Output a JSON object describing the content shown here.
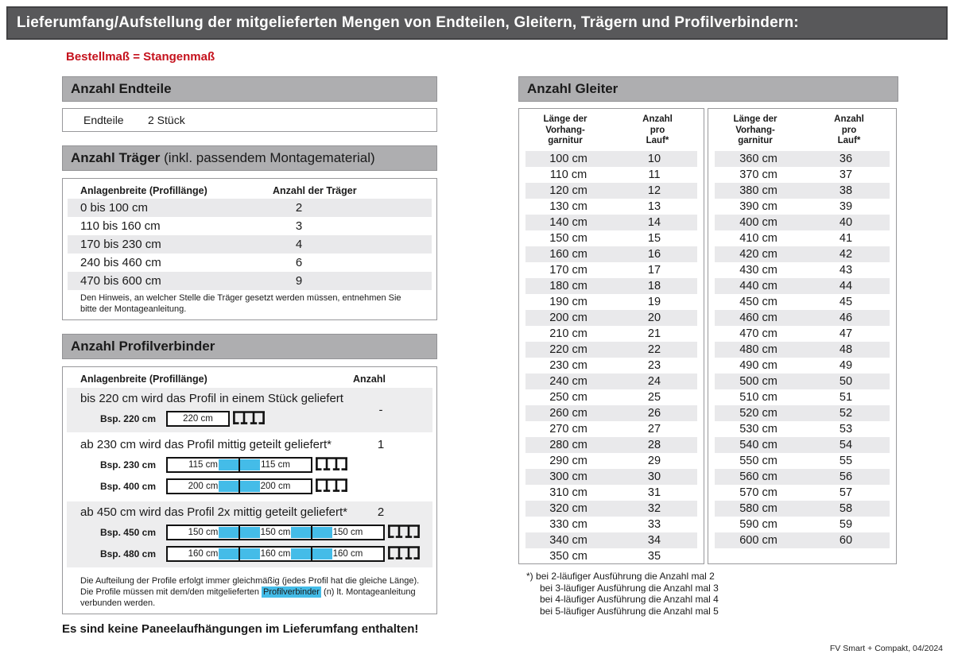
{
  "title": "Lieferumfang/Aufstellung der mitgelieferten Mengen von Endteilen, Gleitern, Trägern und Profilverbindern:",
  "subtitle": "Bestellmaß = Stangenmaß",
  "colors": {
    "titlebar_gray": "#58585a",
    "section_header_gray": "#aeaeb0",
    "row_stripe_gray": "#e9e9eb",
    "accent_red": "#c5121d",
    "connector_blue": "#44bce8"
  },
  "icons": {
    "profile_end": "profile-cross-section-icon"
  },
  "endteile": {
    "header": "Anzahl Endteile",
    "label": "Endteile",
    "value": "2 Stück"
  },
  "traeger": {
    "header_bold": "Anzahl Träger",
    "header_rest": " (inkl. passendem Montagematerial)",
    "col1": "Anlagenbreite (Profillänge)",
    "col2": "Anzahl der Träger",
    "rows": [
      [
        "0 bis 100 cm",
        "2"
      ],
      [
        "110 bis 160 cm",
        "3"
      ],
      [
        "170 bis 230 cm",
        "4"
      ],
      [
        "240 bis 460 cm",
        "6"
      ],
      [
        "470 bis 600 cm",
        "9"
      ]
    ],
    "note": "Den Hinweis, an welcher Stelle die Träger gesetzt werden müssen, entnehmen Sie bitte der Montageanleitung."
  },
  "profilverbinder": {
    "header": "Anzahl Profilverbinder",
    "col1": "Anlagenbreite (Profillänge)",
    "col2": "Anzahl",
    "groups": [
      {
        "text": "bis 220 cm wird das Profil in einem Stück geliefert",
        "anzahl": "-",
        "shaded": true,
        "examples": [
          {
            "label": "Bsp. 220 cm",
            "segments": [
              "220 cm"
            ]
          }
        ]
      },
      {
        "text": "ab 230 cm wird das Profil mittig geteilt geliefert*",
        "anzahl": "1",
        "shaded": false,
        "examples": [
          {
            "label": "Bsp. 230 cm",
            "segments": [
              "115 cm",
              "115 cm"
            ]
          },
          {
            "label": "Bsp. 400 cm",
            "segments": [
              "200 cm",
              "200 cm"
            ]
          }
        ]
      },
      {
        "text": "ab 450 cm wird das Profil 2x mittig geteilt geliefert*",
        "anzahl": "2",
        "shaded": true,
        "examples": [
          {
            "label": "Bsp. 450 cm",
            "segments": [
              "150 cm",
              "150 cm",
              "150 cm"
            ]
          },
          {
            "label": "Bsp. 480 cm",
            "segments": [
              "160 cm",
              "160 cm",
              "160 cm"
            ]
          }
        ]
      }
    ],
    "note_part1": "Die Aufteilung der Profile erfolgt immer gleichmäßig (jedes Profil hat die gleiche Länge). Die Profile müssen mit dem/den mitgelieferten ",
    "note_highlight": "Profilverbinder",
    "note_part2": " (n) lt. Montageanleitung verbunden werden."
  },
  "no_panel_note": "Es sind keine Paneelaufhängungen im Lieferumfang enthalten!",
  "gleiter": {
    "header": "Anzahl Gleiter",
    "col1_lines": [
      "Länge der",
      "Vorhang-",
      "garnitur"
    ],
    "col2_lines": [
      "Anzahl",
      "pro",
      "Lauf*"
    ],
    "table1": {
      "rows": [
        [
          "100 cm",
          "10"
        ],
        [
          "110 cm",
          "11"
        ],
        [
          "120 cm",
          "12"
        ],
        [
          "130 cm",
          "13"
        ],
        [
          "140 cm",
          "14"
        ],
        [
          "150 cm",
          "15"
        ],
        [
          "160 cm",
          "16"
        ],
        [
          "170 cm",
          "17"
        ],
        [
          "180 cm",
          "18"
        ],
        [
          "190 cm",
          "19"
        ],
        [
          "200 cm",
          "20"
        ],
        [
          "210 cm",
          "21"
        ],
        [
          "220 cm",
          "22"
        ],
        [
          "230 cm",
          "23"
        ],
        [
          "240 cm",
          "24"
        ],
        [
          "250 cm",
          "25"
        ],
        [
          "260 cm",
          "26"
        ],
        [
          "270 cm",
          "27"
        ],
        [
          "280 cm",
          "28"
        ],
        [
          "290 cm",
          "29"
        ],
        [
          "300 cm",
          "30"
        ],
        [
          "310 cm",
          "31"
        ],
        [
          "320 cm",
          "32"
        ],
        [
          "330 cm",
          "33"
        ],
        [
          "340 cm",
          "34"
        ],
        [
          "350 cm",
          "35"
        ]
      ]
    },
    "table2": {
      "rows": [
        [
          "360 cm",
          "36"
        ],
        [
          "370 cm",
          "37"
        ],
        [
          "380 cm",
          "38"
        ],
        [
          "390 cm",
          "39"
        ],
        [
          "400 cm",
          "40"
        ],
        [
          "410 cm",
          "41"
        ],
        [
          "420 cm",
          "42"
        ],
        [
          "430 cm",
          "43"
        ],
        [
          "440 cm",
          "44"
        ],
        [
          "450 cm",
          "45"
        ],
        [
          "460 cm",
          "46"
        ],
        [
          "470 cm",
          "47"
        ],
        [
          "480 cm",
          "48"
        ],
        [
          "490 cm",
          "49"
        ],
        [
          "500 cm",
          "50"
        ],
        [
          "510 cm",
          "51"
        ],
        [
          "520 cm",
          "52"
        ],
        [
          "530 cm",
          "53"
        ],
        [
          "540 cm",
          "54"
        ],
        [
          "550 cm",
          "55"
        ],
        [
          "560 cm",
          "56"
        ],
        [
          "570 cm",
          "57"
        ],
        [
          "580 cm",
          "58"
        ],
        [
          "590 cm",
          "59"
        ],
        [
          "600 cm",
          "60"
        ]
      ]
    },
    "footnote_marker": "*)",
    "footnote_lines": [
      "bei 2-läufiger Ausführung die Anzahl mal 2",
      "bei 3-läufiger Ausführung die Anzahl mal 3",
      "bei 4-läufiger Ausführung die Anzahl mal 4",
      "bei 5-läufiger Ausführung die Anzahl mal 5"
    ]
  },
  "footer": "FV Smart + Compakt, 04/2024"
}
